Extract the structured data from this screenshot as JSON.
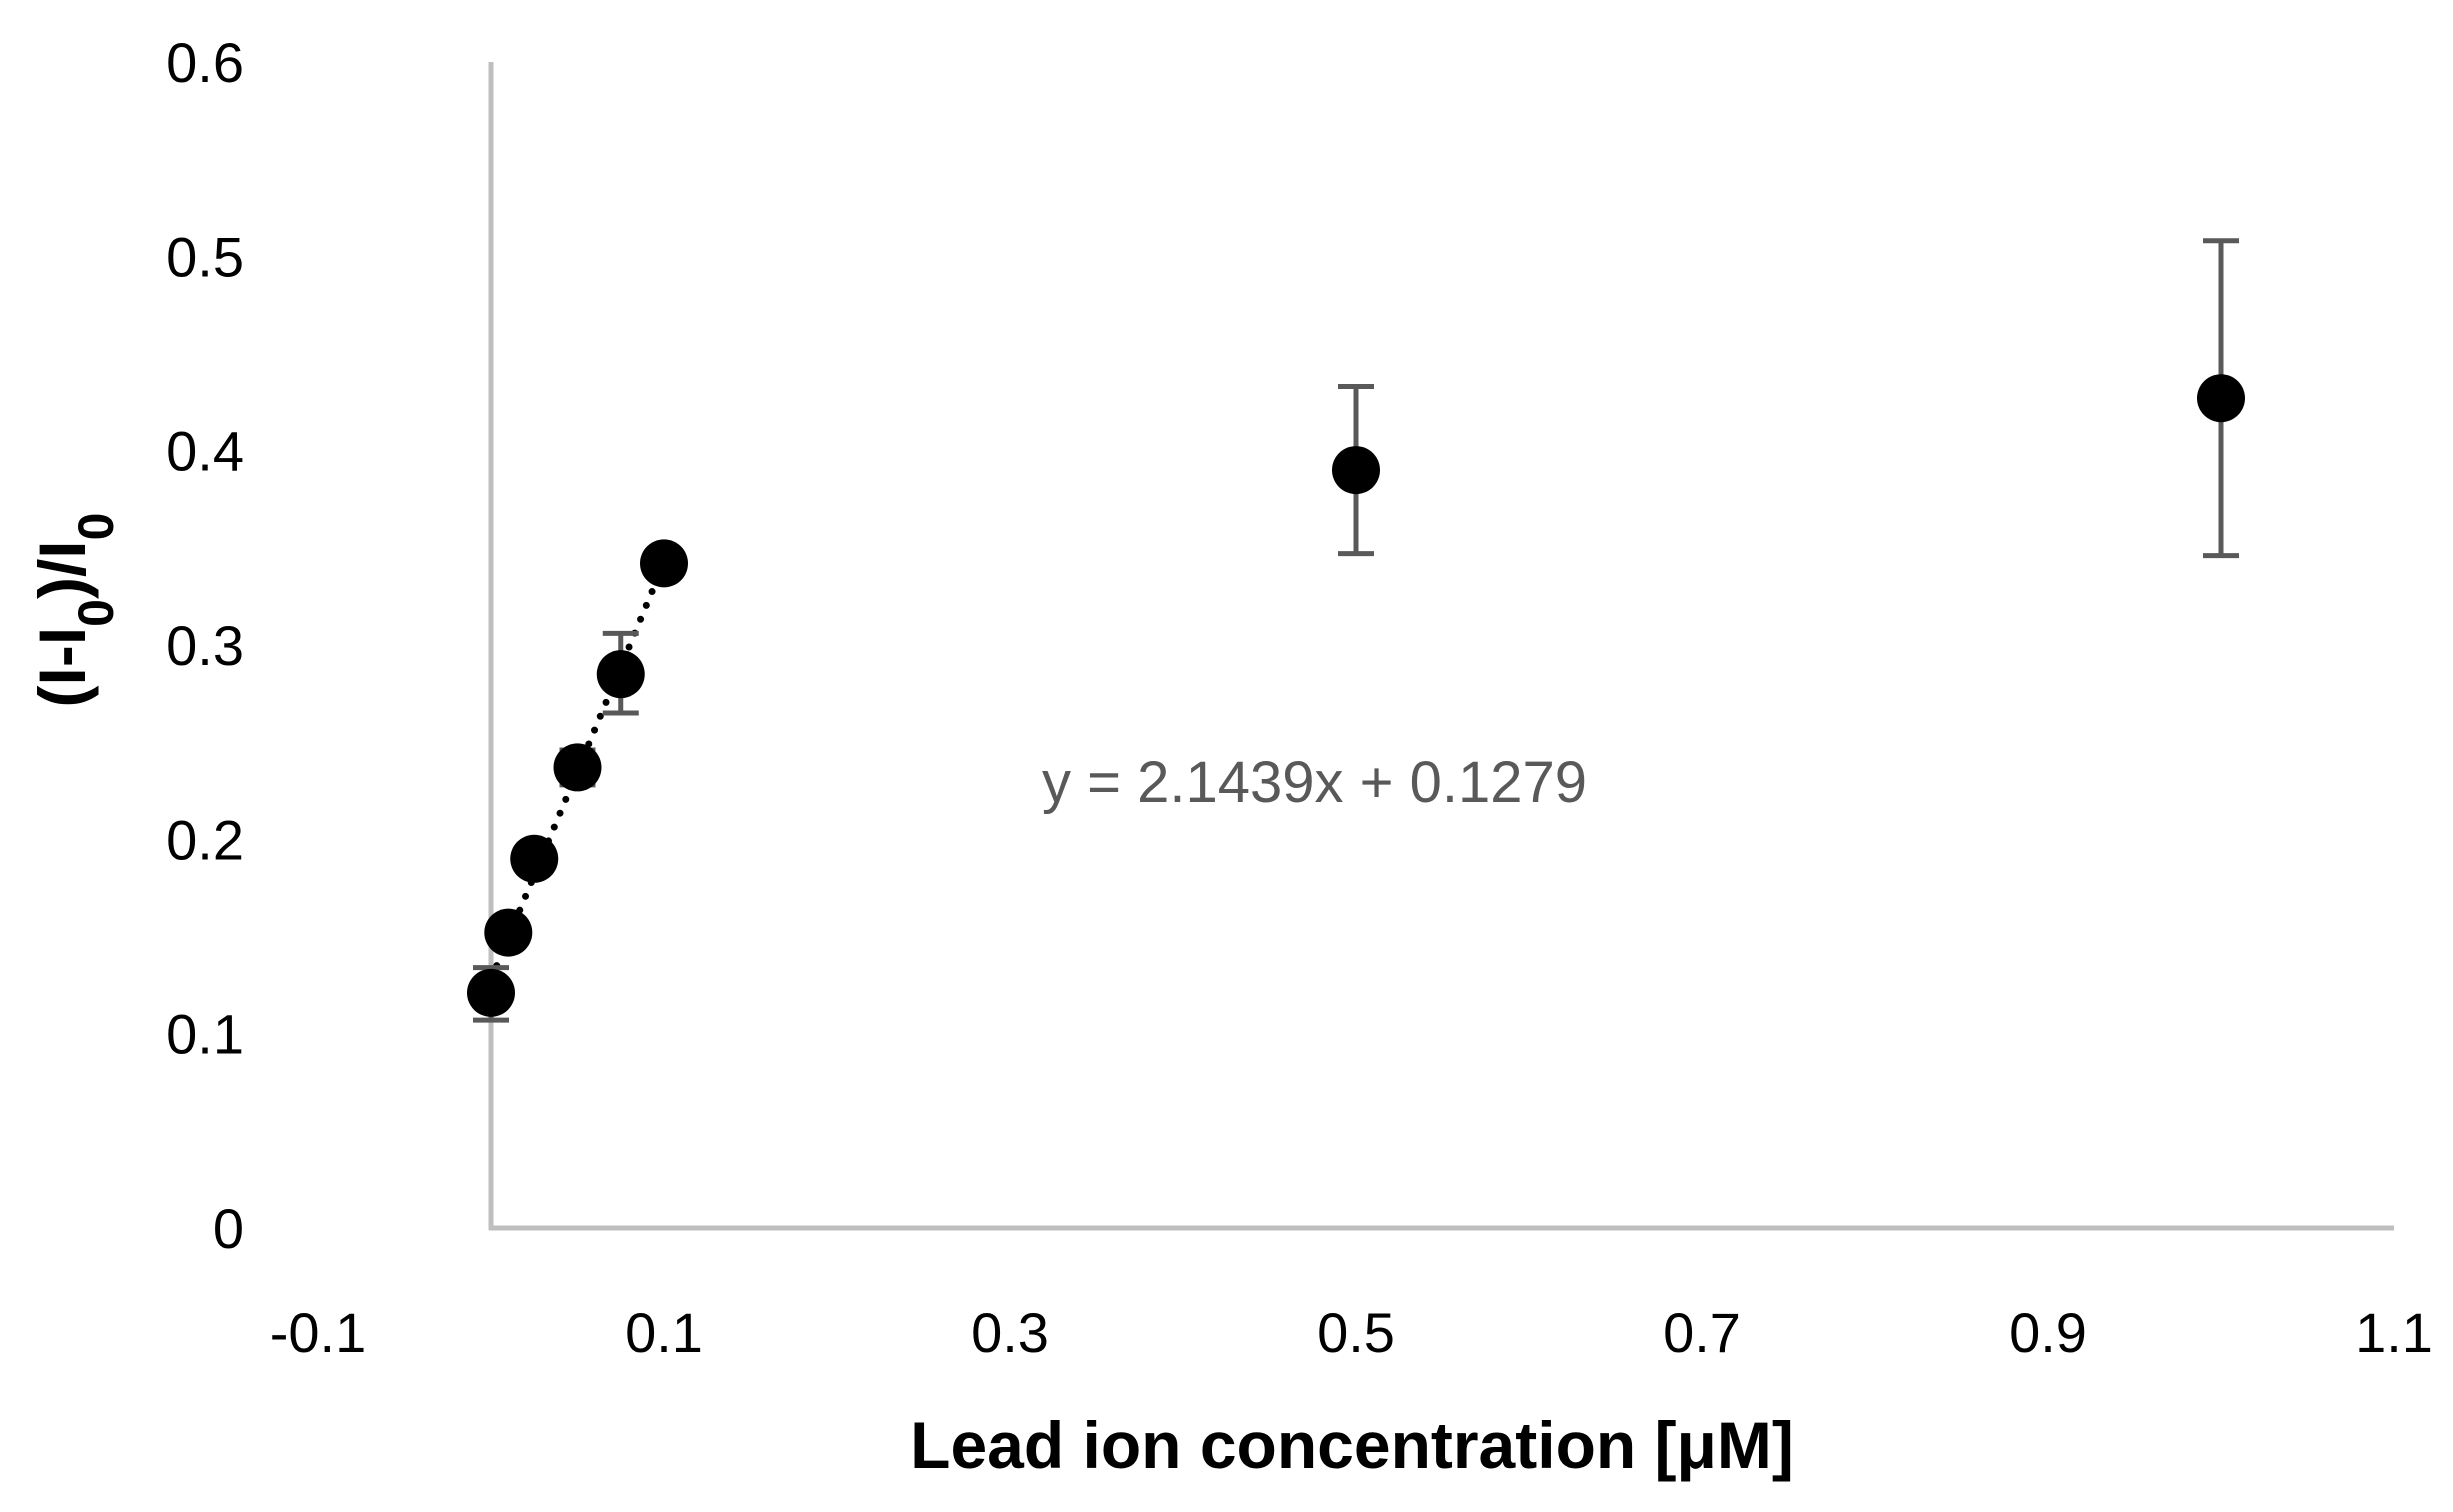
{
  "chart_data": {
    "type": "scatter",
    "title": "",
    "xlabel": "Lead ion concentration [μM]",
    "ylabel": {
      "parts": [
        {
          "text": "(I-I",
          "sub": false
        },
        {
          "text": "0",
          "sub": true
        },
        {
          "text": ")/I",
          "sub": false
        },
        {
          "text": "0",
          "sub": true
        }
      ]
    },
    "xlim": [
      -0.1,
      1.1
    ],
    "ylim": [
      0,
      0.6
    ],
    "x_ticks": [
      -0.1,
      0.1,
      0.3,
      0.5,
      0.7,
      0.9,
      1.1
    ],
    "x_tick_labels": [
      "-0.1",
      "0.1",
      "0.3",
      "0.5",
      "0.7",
      "0.9",
      "1.1"
    ],
    "y_ticks": [
      0,
      0.1,
      0.2,
      0.3,
      0.4,
      0.5,
      0.6
    ],
    "y_tick_labels": [
      "0",
      "0.1",
      "0.2",
      "0.3",
      "0.4",
      "0.5",
      "0.6"
    ],
    "grid": false,
    "series": [
      {
        "points": [
          {
            "x": 0.0,
            "y": 0.121,
            "err_low": 0.107,
            "err_high": 0.134
          },
          {
            "x": 0.01,
            "y": 0.152,
            "err_low": 0.145,
            "err_high": 0.158
          },
          {
            "x": 0.025,
            "y": 0.19,
            "err_low": 0.183,
            "err_high": 0.196
          },
          {
            "x": 0.05,
            "y": 0.237,
            "err_low": 0.228,
            "err_high": 0.246
          },
          {
            "x": 0.075,
            "y": 0.285,
            "err_low": 0.265,
            "err_high": 0.306
          },
          {
            "x": 0.1,
            "y": 0.342,
            "err_low": 0.338,
            "err_high": 0.347
          },
          {
            "x": 0.5,
            "y": 0.39,
            "err_low": 0.347,
            "err_high": 0.433
          },
          {
            "x": 1.0,
            "y": 0.427,
            "err_low": 0.346,
            "err_high": 0.508
          }
        ],
        "marker_color": "#000000",
        "errorbar_color": "#595959"
      }
    ],
    "trendline": {
      "slope": 2.1439,
      "intercept": 0.1279,
      "x_range": [
        0.0,
        0.1
      ],
      "style": "dotted",
      "color": "#000000",
      "equation_text": "y = 2.1439x + 0.1279"
    },
    "colors": {
      "axis": "#bfbfbf",
      "tick_text": "#000000",
      "annotation_text": "#595959"
    }
  }
}
